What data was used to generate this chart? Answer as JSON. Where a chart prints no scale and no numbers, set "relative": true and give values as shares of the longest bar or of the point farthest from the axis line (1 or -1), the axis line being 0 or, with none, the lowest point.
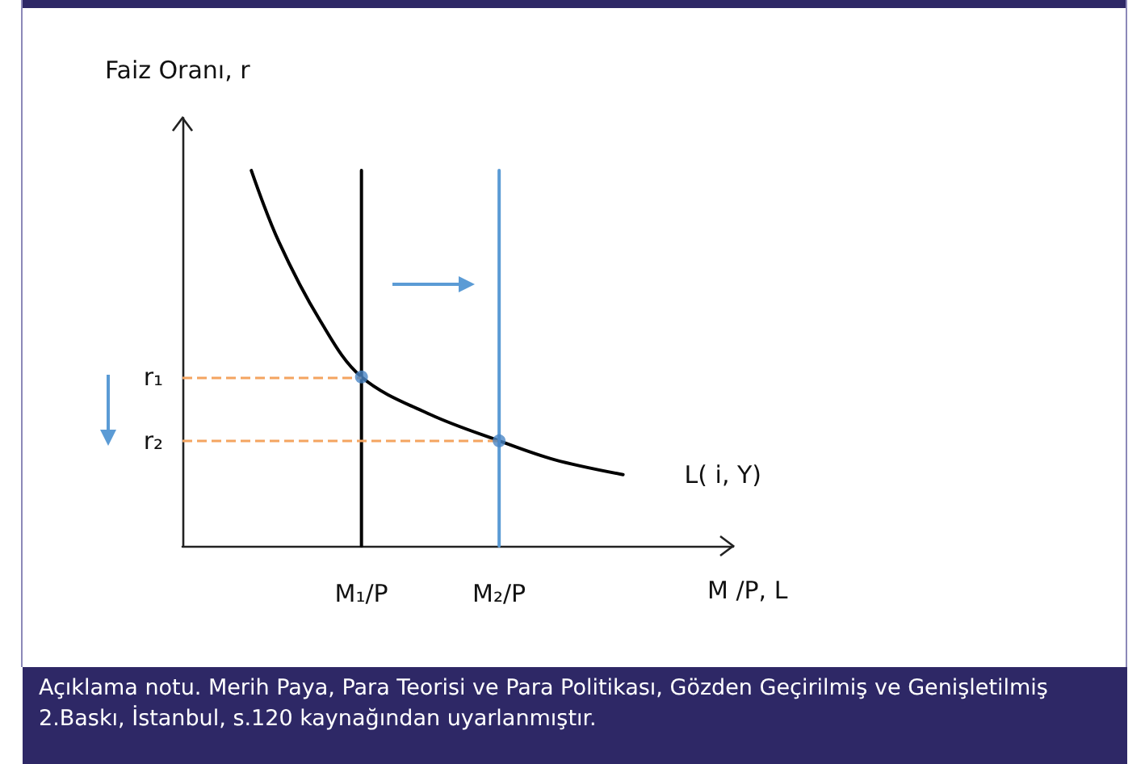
{
  "chart_data": {
    "type": "line",
    "relative": true,
    "xlabel": "M /P, L",
    "ylabel": "Faiz Oranı, r",
    "categories": [
      null,
      null,
      null,
      null,
      null,
      null,
      null,
      null,
      null,
      null,
      null,
      null,
      null,
      "M₁/P",
      null,
      null,
      null,
      null,
      null,
      null,
      null,
      null,
      null,
      "M₂/P",
      null,
      null,
      null,
      null,
      null,
      null,
      null,
      null,
      null,
      null,
      null,
      null,
      null,
      null,
      null,
      null,
      null
    ],
    "grid": false,
    "marker": "none",
    "ref_lines": [
      {
        "axis": "y",
        "value": 0.45,
        "label": "r₁",
        "color": "#f4a460",
        "line_style": "dashed"
      },
      {
        "axis": "y",
        "value": 0.28,
        "label": "r₂",
        "color": "#f4a460",
        "line_style": "dashed"
      }
    ],
    "series": [
      {
        "name": "L( i, Y)",
        "color": "#000000",
        "values": [
          null,
          null,
          null,
          null,
          null,
          1.0,
          null,
          0.81,
          null,
          null,
          0.6,
          null,
          null,
          0.45,
          null,
          null,
          null,
          null,
          0.35,
          null,
          null,
          null,
          null,
          0.28,
          null,
          null,
          null,
          0.23,
          null,
          null,
          null,
          null,
          0.19,
          null,
          null,
          null,
          null,
          null,
          null,
          null,
          null
        ]
      },
      {
        "color": "#000000",
        "x": [
          "M₁/P",
          "M₁/P"
        ],
        "values": [
          0,
          1
        ]
      },
      {
        "color": "#5b9bd5",
        "x": [
          "M₂/P",
          "M₂/P"
        ],
        "values": [
          0,
          1
        ]
      },
      {
        "type": "scatter",
        "marker": "circle",
        "color": "#4a86c5",
        "x": [
          "M₁/P",
          "M₂/P"
        ],
        "values": [
          0.45,
          0.28
        ]
      }
    ],
    "annotations": [
      "Açıklama notu. Merih Paya, Para Teorisi ve Para Politikası, Gözden Geçirilmiş ve Genişletilmiş 2.Baskı, İstanbul, s.120 kaynağından uyarlanmıştır."
    ]
  }
}
